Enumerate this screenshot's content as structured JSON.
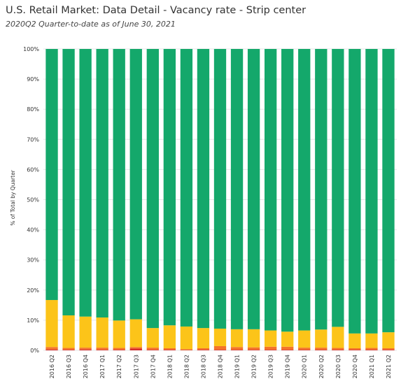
{
  "header": {
    "title": "U.S. Retail Market: Data Detail - Vacancy rate - Strip center",
    "subtitle": "2020Q2 Quarter-to-date as of June 30, 2021"
  },
  "colors": {
    "green": "#14a86b",
    "yellow": "#fcc419",
    "orange": "#f4742b",
    "red": "#d62c2c",
    "gridline": "#e6e6e6"
  },
  "chart_data": {
    "type": "bar",
    "stacked": true,
    "orientation": "vertical",
    "xlabel": "",
    "ylabel": "% of Total by Quarter",
    "ylim": [
      0,
      100
    ],
    "y_ticks": [
      "0%",
      "10%",
      "20%",
      "30%",
      "40%",
      "50%",
      "60%",
      "70%",
      "80%",
      "90%",
      "100%"
    ],
    "categories": [
      "2016 Q2",
      "2016 Q3",
      "2016 Q4",
      "2017 Q1",
      "2017 Q2",
      "2017 Q3",
      "2017 Q4",
      "2018 Q1",
      "2018 Q2",
      "2018 Q3",
      "2018 Q4",
      "2019 Q1",
      "2019 Q2",
      "2019 Q3",
      "2019 Q4",
      "2020 Q1",
      "2020 Q2",
      "2020 Q3",
      "2020 Q4",
      "2021 Q1",
      "2021 Q2"
    ],
    "series": [
      {
        "color": "#d62c2c",
        "values": [
          0.3,
          0.2,
          0.3,
          0.2,
          0.2,
          0.6,
          0.2,
          0.2,
          0.1,
          0.2,
          0.2,
          0.2,
          0.2,
          0.2,
          0.2,
          0.2,
          0.2,
          0.2,
          0.2,
          0.2,
          0.2
        ]
      },
      {
        "color": "#f4742b",
        "values": [
          0.8,
          0.6,
          0.6,
          0.7,
          0.6,
          0.5,
          0.7,
          0.5,
          0.3,
          0.5,
          1.2,
          0.9,
          0.8,
          1.0,
          1.0,
          0.7,
          0.7,
          0.6,
          0.5,
          0.6,
          0.5
        ]
      },
      {
        "color": "#fcc419",
        "values": [
          15.6,
          10.8,
          10.3,
          10.0,
          9.1,
          9.2,
          6.5,
          7.6,
          7.5,
          6.7,
          5.8,
          5.9,
          6.0,
          5.4,
          5.0,
          5.7,
          6.0,
          7.0,
          4.9,
          4.8,
          5.3
        ]
      },
      {
        "color": "#14a86b",
        "values": [
          83.3,
          88.4,
          88.8,
          89.1,
          90.1,
          89.7,
          92.6,
          91.7,
          92.1,
          92.6,
          92.8,
          93.0,
          93.0,
          93.4,
          93.8,
          93.4,
          93.1,
          92.2,
          94.4,
          94.4,
          94.0
        ]
      }
    ]
  }
}
